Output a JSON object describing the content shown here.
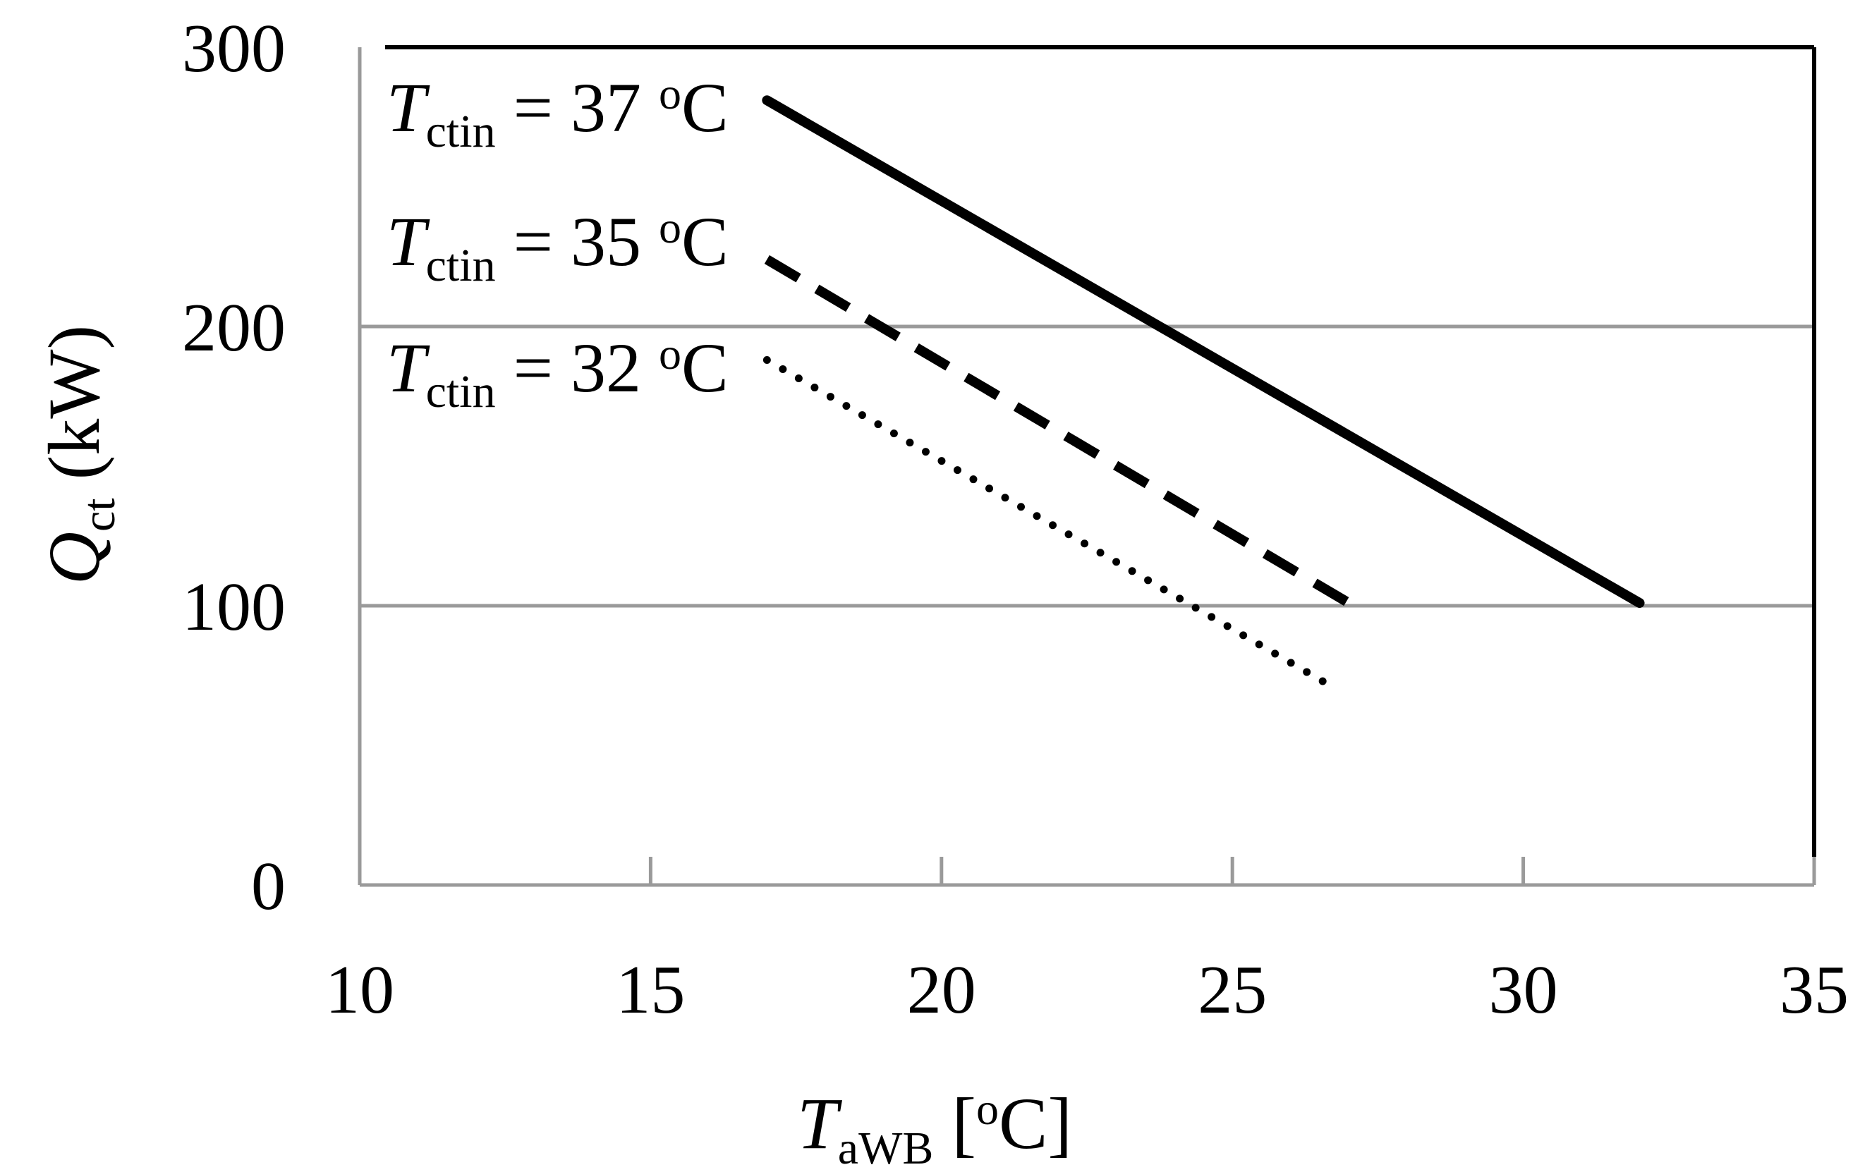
{
  "chart_data": {
    "type": "line",
    "x_axis": {
      "title_main": "T",
      "title_sub": "aWB",
      "title_rest_open": " [",
      "title_sup": "o",
      "title_rest_close": "C]",
      "xlim": [
        10,
        35
      ],
      "ticks": [
        10,
        15,
        20,
        25,
        30,
        35
      ],
      "tick_labels": [
        "10",
        "15",
        "20",
        "25",
        "30",
        "35"
      ]
    },
    "y_axis": {
      "title_main": "Q",
      "title_sub": "ct",
      "title_rest": " (kW)",
      "ylim": [
        0,
        300
      ],
      "ticks": [
        0,
        100,
        200,
        300
      ],
      "tick_labels": [
        "0",
        "100",
        "200",
        "300"
      ]
    },
    "grid": "horizontal",
    "series": [
      {
        "name": "Tctin = 37 oC",
        "label_main": "T",
        "label_sub": "ctin",
        "label_eq": " = 37 ",
        "label_sup": "o",
        "label_unit": "C",
        "style": "solid",
        "x": [
          17,
          32
        ],
        "y": [
          281,
          101
        ]
      },
      {
        "name": "Tctin = 35 oC",
        "label_main": "T",
        "label_sub": "ctin",
        "label_eq": " = 35 ",
        "label_sup": "o",
        "label_unit": "C",
        "style": "dashed",
        "x": [
          17,
          27
        ],
        "y": [
          224,
          101
        ]
      },
      {
        "name": "Tctin = 32 oC",
        "label_main": "T",
        "label_sub": "ctin",
        "label_eq": " = 32 ",
        "label_sup": "o",
        "label_unit": "C",
        "style": "dotted",
        "x": [
          17,
          26.8
        ],
        "y": [
          188,
          70
        ]
      }
    ]
  }
}
